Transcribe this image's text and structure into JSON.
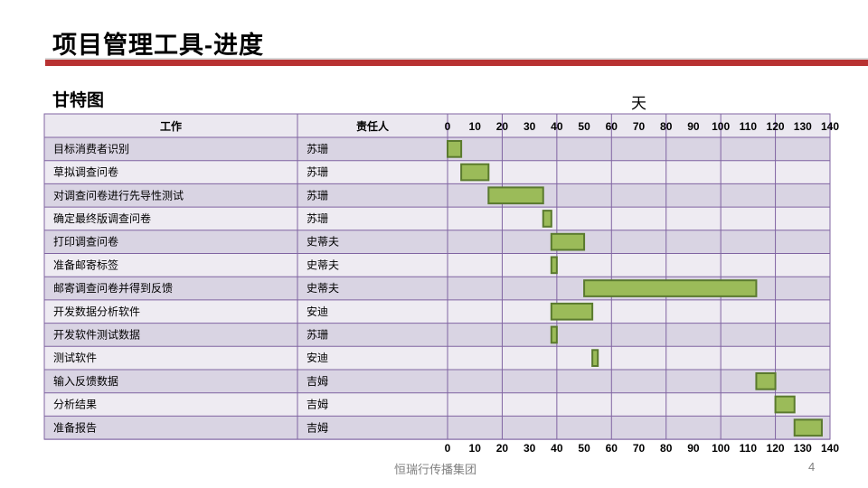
{
  "slide": {
    "title": "项目管理工具-进度",
    "subtitle": "甘特图",
    "footer": "恒瑞行传播集团",
    "page_number": "4",
    "accent_color": "#b83232"
  },
  "chart_data": {
    "type": "gantt",
    "x_unit_label": "天",
    "xlim": [
      0,
      140
    ],
    "x_ticks": [
      0,
      10,
      20,
      30,
      40,
      50,
      60,
      70,
      80,
      90,
      100,
      110,
      120,
      130,
      140
    ],
    "columns": [
      "工作",
      "责任人"
    ],
    "bar_color": "#9bbb59",
    "bar_border_color": "#5a7a2e",
    "tasks": [
      {
        "task": "目标消费者识别",
        "owner": "苏珊",
        "start": 0,
        "end": 5
      },
      {
        "task": "草拟调查问卷",
        "owner": "苏珊",
        "start": 5,
        "end": 15
      },
      {
        "task": "对调查问卷进行先导性测试",
        "owner": "苏珊",
        "start": 15,
        "end": 35
      },
      {
        "task": "确定最终版调查问卷",
        "owner": "苏珊",
        "start": 35,
        "end": 38
      },
      {
        "task": "打印调查问卷",
        "owner": "史蒂夫",
        "start": 38,
        "end": 50
      },
      {
        "task": "准备邮寄标签",
        "owner": "史蒂夫",
        "start": 38,
        "end": 40
      },
      {
        "task": "邮寄调查问卷并得到反馈",
        "owner": "史蒂夫",
        "start": 50,
        "end": 113
      },
      {
        "task": "开发数据分析软件",
        "owner": "安迪",
        "start": 38,
        "end": 53
      },
      {
        "task": "开发软件测试数据",
        "owner": "苏珊",
        "start": 38,
        "end": 40
      },
      {
        "task": "测试软件",
        "owner": "安迪",
        "start": 53,
        "end": 55
      },
      {
        "task": "输入反馈数据",
        "owner": "吉姆",
        "start": 113,
        "end": 120
      },
      {
        "task": "分析结果",
        "owner": "吉姆",
        "start": 120,
        "end": 127
      },
      {
        "task": "准备报告",
        "owner": "吉姆",
        "start": 127,
        "end": 137
      }
    ]
  }
}
